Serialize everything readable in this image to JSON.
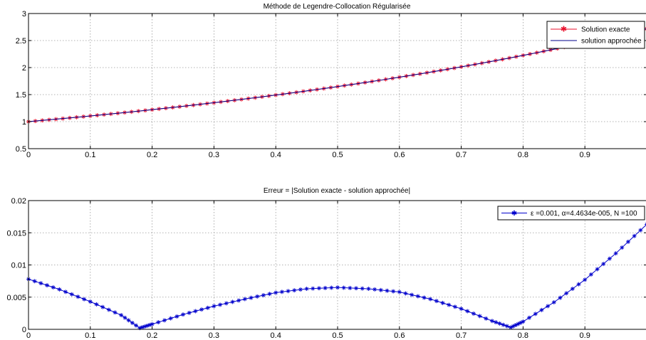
{
  "chart_data": [
    {
      "type": "line",
      "title": "Méthode de Legendre-Collocation Régularisée",
      "xlim": [
        0,
        1
      ],
      "ylim": [
        0.5,
        3
      ],
      "xticks": [
        "0",
        "0.1",
        "0.2",
        "0.3",
        "0.4",
        "0.5",
        "0.6",
        "0.7",
        "0.8",
        "0.9"
      ],
      "yticks": [
        "0.5",
        "1",
        "1.5",
        "2",
        "2.5",
        "3"
      ],
      "grid": true,
      "legend_position": "top-right",
      "series": [
        {
          "name": "Solution exacte",
          "function": "exp(x)",
          "x_range": [
            0,
            1
          ],
          "color": "#e8112d",
          "marker": "plus-star"
        },
        {
          "name": "solution approchée",
          "function": "exp(x)",
          "x_range": [
            0,
            1
          ],
          "color": "#00008b",
          "marker": "none"
        }
      ]
    },
    {
      "type": "line",
      "title": "Erreur = |Solution exacte - solution approchée|",
      "xlim": [
        0,
        1
      ],
      "ylim": [
        0,
        0.02
      ],
      "xticks": [
        "0",
        "0.1",
        "0.2",
        "0.3",
        "0.4",
        "0.5",
        "0.6",
        "0.7",
        "0.8",
        "0.9"
      ],
      "yticks": [
        "0",
        "0.005",
        "0.01",
        "0.015",
        "0.02"
      ],
      "grid": true,
      "legend_position": "top-right",
      "series": [
        {
          "name": "ε =0.001, α=4.4634e-005, N =100",
          "color": "#0000cc",
          "marker": "star",
          "x": [
            0,
            0.05,
            0.1,
            0.15,
            0.18,
            0.2,
            0.25,
            0.3,
            0.35,
            0.4,
            0.45,
            0.5,
            0.55,
            0.6,
            0.65,
            0.7,
            0.75,
            0.78,
            0.8,
            0.85,
            0.9,
            0.95,
            1.0
          ],
          "y": [
            0.0078,
            0.0062,
            0.0043,
            0.0022,
            0.0002,
            0.0008,
            0.0023,
            0.0036,
            0.0047,
            0.0057,
            0.0063,
            0.0065,
            0.0063,
            0.0058,
            0.0047,
            0.0032,
            0.0013,
            0.0003,
            0.0012,
            0.0042,
            0.0077,
            0.0118,
            0.0163
          ]
        }
      ]
    }
  ]
}
